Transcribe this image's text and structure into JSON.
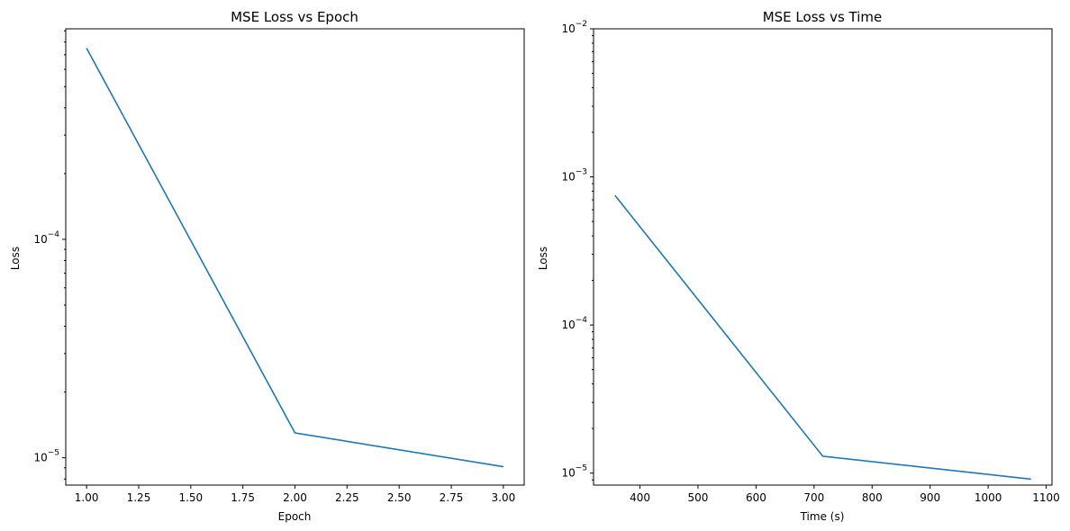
{
  "chart_data": [
    {
      "type": "line",
      "title": "MSE Loss vs Epoch",
      "xlabel": "Epoch",
      "ylabel": "Loss",
      "yscale": "log",
      "xlim": [
        0.9,
        3.1
      ],
      "ylim": [
        7.5e-06,
        0.00092
      ],
      "xticks": [
        "1.00",
        "1.25",
        "1.50",
        "1.75",
        "2.00",
        "2.25",
        "2.50",
        "2.75",
        "3.00"
      ],
      "yticks": [
        "10^-5",
        "10^-4"
      ],
      "grid": false,
      "series": [
        {
          "color": "#1f77b4",
          "x": [
            1,
            2,
            3
          ],
          "y": [
            0.00075,
            1.3e-05,
            9.1e-06
          ]
        }
      ]
    },
    {
      "type": "line",
      "title": "MSE Loss vs Time",
      "xlabel": "Time (s)",
      "ylabel": "Loss",
      "yscale": "log",
      "xlim": [
        320,
        1110
      ],
      "ylim": [
        8.3e-06,
        0.01
      ],
      "xticks": [
        "400",
        "500",
        "600",
        "700",
        "800",
        "900",
        "1000",
        "1100"
      ],
      "yticks": [
        "10^-5",
        "10^-4",
        "10^-3",
        "10^-2"
      ],
      "grid": false,
      "series": [
        {
          "color": "#1f77b4",
          "x": [
            357,
            715,
            1074
          ],
          "y": [
            0.00075,
            1.3e-05,
            9.1e-06
          ]
        }
      ]
    }
  ]
}
